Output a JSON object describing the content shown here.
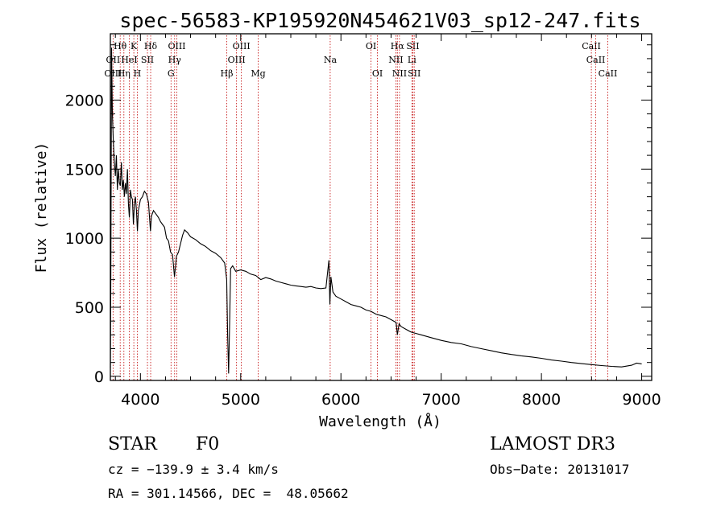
{
  "chart_data": {
    "type": "line",
    "title": "spec-56583-KP195920N454621V03_sp12-247.fits",
    "xlabel": "Wavelength (Å)",
    "ylabel": "Flux (relative)",
    "xlim": [
      3700,
      9100
    ],
    "ylim": [
      -30,
      2480
    ],
    "xticks": [
      4000,
      5000,
      6000,
      7000,
      8000,
      9000
    ],
    "yticks": [
      0,
      500,
      1000,
      1500,
      2000
    ],
    "series": [
      {
        "name": "flux",
        "points": [
          [
            3700,
            60
          ],
          [
            3705,
            740
          ],
          [
            3712,
            2380
          ],
          [
            3720,
            1900
          ],
          [
            3730,
            1700
          ],
          [
            3740,
            1550
          ],
          [
            3750,
            1450
          ],
          [
            3760,
            1600
          ],
          [
            3770,
            1350
          ],
          [
            3780,
            1500
          ],
          [
            3790,
            1400
          ],
          [
            3800,
            1380
          ],
          [
            3810,
            1550
          ],
          [
            3820,
            1350
          ],
          [
            3830,
            1420
          ],
          [
            3840,
            1300
          ],
          [
            3850,
            1400
          ],
          [
            3860,
            1320
          ],
          [
            3870,
            1500
          ],
          [
            3880,
            1250
          ],
          [
            3890,
            1150
          ],
          [
            3900,
            1350
          ],
          [
            3910,
            1300
          ],
          [
            3920,
            1280
          ],
          [
            3930,
            1100
          ],
          [
            3940,
            1250
          ],
          [
            3950,
            1300
          ],
          [
            3960,
            1200
          ],
          [
            3970,
            1050
          ],
          [
            3980,
            1200
          ],
          [
            4000,
            1280
          ],
          [
            4020,
            1300
          ],
          [
            4040,
            1340
          ],
          [
            4060,
            1320
          ],
          [
            4080,
            1260
          ],
          [
            4100,
            1050
          ],
          [
            4110,
            1160
          ],
          [
            4130,
            1200
          ],
          [
            4150,
            1180
          ],
          [
            4180,
            1150
          ],
          [
            4200,
            1120
          ],
          [
            4220,
            1100
          ],
          [
            4240,
            1080
          ],
          [
            4260,
            1000
          ],
          [
            4280,
            980
          ],
          [
            4300,
            900
          ],
          [
            4320,
            880
          ],
          [
            4340,
            720
          ],
          [
            4360,
            870
          ],
          [
            4380,
            900
          ],
          [
            4400,
            960
          ],
          [
            4420,
            1020
          ],
          [
            4440,
            1060
          ],
          [
            4470,
            1040
          ],
          [
            4500,
            1010
          ],
          [
            4550,
            990
          ],
          [
            4600,
            960
          ],
          [
            4650,
            940
          ],
          [
            4700,
            910
          ],
          [
            4750,
            890
          ],
          [
            4800,
            860
          ],
          [
            4840,
            820
          ],
          [
            4860,
            700
          ],
          [
            4870,
            300
          ],
          [
            4880,
            20
          ],
          [
            4890,
            400
          ],
          [
            4900,
            780
          ],
          [
            4920,
            800
          ],
          [
            4950,
            760
          ],
          [
            5000,
            770
          ],
          [
            5050,
            760
          ],
          [
            5100,
            740
          ],
          [
            5150,
            730
          ],
          [
            5200,
            700
          ],
          [
            5250,
            715
          ],
          [
            5300,
            705
          ],
          [
            5350,
            690
          ],
          [
            5400,
            680
          ],
          [
            5450,
            670
          ],
          [
            5500,
            660
          ],
          [
            5550,
            655
          ],
          [
            5600,
            650
          ],
          [
            5650,
            645
          ],
          [
            5700,
            650
          ],
          [
            5750,
            640
          ],
          [
            5800,
            635
          ],
          [
            5850,
            640
          ],
          [
            5880,
            840
          ],
          [
            5890,
            520
          ],
          [
            5900,
            720
          ],
          [
            5920,
            610
          ],
          [
            5950,
            580
          ],
          [
            6000,
            560
          ],
          [
            6050,
            540
          ],
          [
            6100,
            520
          ],
          [
            6150,
            510
          ],
          [
            6200,
            500
          ],
          [
            6250,
            480
          ],
          [
            6300,
            470
          ],
          [
            6350,
            450
          ],
          [
            6400,
            440
          ],
          [
            6450,
            430
          ],
          [
            6500,
            410
          ],
          [
            6550,
            390
          ],
          [
            6563,
            300
          ],
          [
            6580,
            380
          ],
          [
            6600,
            360
          ],
          [
            6650,
            340
          ],
          [
            6700,
            320
          ],
          [
            6750,
            310
          ],
          [
            6800,
            300
          ],
          [
            6900,
            280
          ],
          [
            7000,
            260
          ],
          [
            7100,
            245
          ],
          [
            7200,
            235
          ],
          [
            7300,
            215
          ],
          [
            7400,
            200
          ],
          [
            7500,
            185
          ],
          [
            7600,
            170
          ],
          [
            7700,
            158
          ],
          [
            7800,
            148
          ],
          [
            7900,
            140
          ],
          [
            8000,
            130
          ],
          [
            8100,
            118
          ],
          [
            8200,
            110
          ],
          [
            8300,
            100
          ],
          [
            8400,
            92
          ],
          [
            8500,
            85
          ],
          [
            8600,
            78
          ],
          [
            8700,
            72
          ],
          [
            8800,
            68
          ],
          [
            8900,
            80
          ],
          [
            8950,
            95
          ],
          [
            9000,
            90
          ]
        ]
      }
    ],
    "spectral_lines": [
      {
        "label": "Hθ",
        "wl": 3798,
        "row": 1
      },
      {
        "label": "OII",
        "wl": 3727,
        "row": 2
      },
      {
        "label": "OIII",
        "wl": 3727,
        "row": 3
      },
      {
        "label": "K",
        "wl": 3934,
        "row": 1
      },
      {
        "label": "HeI",
        "wl": 3889,
        "row": 2
      },
      {
        "label": "Hη",
        "wl": 3835,
        "row": 3
      },
      {
        "label": "Hδ",
        "wl": 4102,
        "row": 1
      },
      {
        "label": "SII",
        "wl": 4070,
        "row": 2
      },
      {
        "label": "H",
        "wl": 3969,
        "row": 3
      },
      {
        "label": "OIII",
        "wl": 4363,
        "row": 1
      },
      {
        "label": "Hγ",
        "wl": 4341,
        "row": 2
      },
      {
        "label": "G",
        "wl": 4305,
        "row": 3
      },
      {
        "label": "OIII",
        "wl": 5007,
        "row": 1
      },
      {
        "label": "OIII",
        "wl": 4959,
        "row": 2
      },
      {
        "label": "Hβ",
        "wl": 4861,
        "row": 3
      },
      {
        "label": "Mg",
        "wl": 5175,
        "row": 3
      },
      {
        "label": "Na",
        "wl": 5893,
        "row": 2
      },
      {
        "label": "OI",
        "wl": 6300,
        "row": 1
      },
      {
        "label": "OI",
        "wl": 6364,
        "row": 3
      },
      {
        "label": "Hα",
        "wl": 6563,
        "row": 1
      },
      {
        "label": "SII",
        "wl": 6717,
        "row": 1
      },
      {
        "label": "NII",
        "wl": 6548,
        "row": 2
      },
      {
        "label": "Li",
        "wl": 6708,
        "row": 2
      },
      {
        "label": "NII",
        "wl": 6584,
        "row": 3
      },
      {
        "label": "SII",
        "wl": 6731,
        "row": 3
      },
      {
        "label": "CaII",
        "wl": 8498,
        "row": 1
      },
      {
        "label": "CaII",
        "wl": 8542,
        "row": 2
      },
      {
        "label": "CaII",
        "wl": 8662,
        "row": 3
      }
    ]
  },
  "info": {
    "object_class": "STAR",
    "subclass": "F0",
    "survey": "LAMOST DR3",
    "cz": "cz = −139.9 ± 3.4 km/s",
    "obs_date": "Obs−Date: 20131017",
    "coords": "RA = 301.14566, DEC =  48.05662"
  }
}
